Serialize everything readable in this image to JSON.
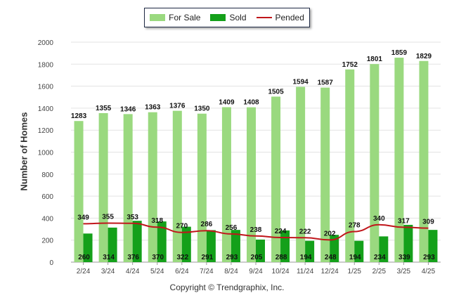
{
  "chart_data": {
    "type": "bar",
    "categories": [
      "2/24",
      "3/24",
      "4/24",
      "5/24",
      "6/24",
      "7/24",
      "8/24",
      "9/24",
      "10/24",
      "11/24",
      "12/24",
      "1/25",
      "2/25",
      "3/25",
      "4/25"
    ],
    "series": [
      {
        "name": "For Sale",
        "type": "bar",
        "color": "#9ad97f",
        "values": [
          1283,
          1355,
          1346,
          1363,
          1376,
          1350,
          1409,
          1408,
          1505,
          1594,
          1587,
          1752,
          1801,
          1859,
          1829
        ]
      },
      {
        "name": "Sold",
        "type": "bar",
        "color": "#14a01a",
        "values": [
          260,
          314,
          376,
          370,
          322,
          291,
          293,
          205,
          288,
          194,
          248,
          194,
          234,
          339,
          293
        ]
      },
      {
        "name": "Pended",
        "type": "line",
        "color": "#c0161b",
        "values": [
          349,
          355,
          353,
          318,
          270,
          286,
          256,
          238,
          224,
          222,
          202,
          278,
          340,
          317,
          309
        ]
      }
    ],
    "ylabel": "Number of Homes",
    "xlabel": "",
    "ylim": [
      0,
      2000
    ],
    "yticks": [
      0,
      200,
      400,
      600,
      800,
      1000,
      1200,
      1400,
      1600,
      1800,
      2000
    ],
    "grid": true,
    "legend_position": "top-center"
  },
  "copyright": "Copyright © Trendgraphix, Inc."
}
